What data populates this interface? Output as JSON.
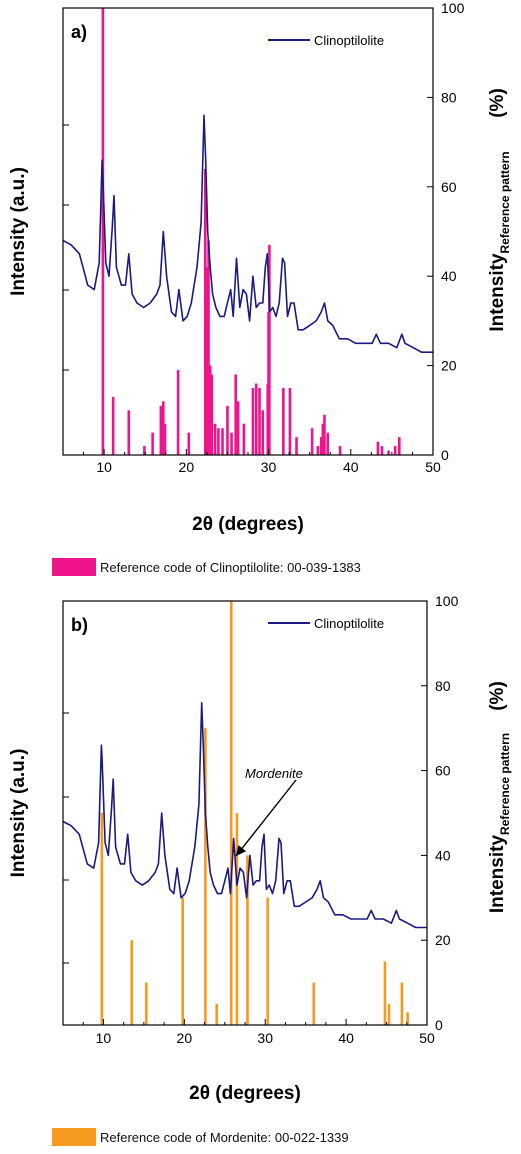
{
  "chart_data": [
    {
      "type": "line",
      "panel_label": "a)",
      "xlabel": "2θ (degrees)",
      "ylabel_left": "Intensity (a.u.)",
      "ylabel_right": "Intensity",
      "ylabel_right_sub": "Reference pattern",
      "ylabel_right_unit": "(%)",
      "xlim": [
        5,
        50
      ],
      "ylim_right": [
        0,
        100
      ],
      "x_ticks": [
        "10",
        "20",
        "30",
        "40",
        "50"
      ],
      "y_right_ticks": [
        "0",
        "20",
        "40",
        "60",
        "80",
        "100"
      ],
      "legend": "top-right",
      "series": [
        {
          "name": "Clinoptilolite",
          "color": "#1a1a80",
          "x": [
            5,
            6,
            7,
            8,
            8.8,
            9.4,
            9.75,
            9.85,
            10.2,
            10.6,
            11.0,
            11.2,
            11.5,
            12.1,
            12.6,
            13.0,
            13.4,
            14,
            14.8,
            15.6,
            16.4,
            16.8,
            17.2,
            17.6,
            18.2,
            18.7,
            19.1,
            19.6,
            20.1,
            20.6,
            21.3,
            21.8,
            22.15,
            22.35,
            22.6,
            22.9,
            23.2,
            23.6,
            24.1,
            24.6,
            25,
            25.4,
            25.7,
            26.1,
            26.5,
            26.9,
            27.3,
            27.7,
            28.1,
            28.5,
            28.9,
            29.3,
            29.6,
            29.85,
            30.15,
            30.5,
            30.9,
            31.3,
            31.7,
            31.95,
            32.3,
            32.7,
            33.1,
            33.6,
            34.2,
            35,
            35.8,
            36.4,
            36.8,
            37.2,
            37.8,
            38.6,
            39.6,
            40.6,
            41.6,
            42.6,
            43.1,
            43.6,
            44.6,
            45.6,
            46.2,
            46.6,
            47.6,
            48.6,
            49.3,
            50
          ],
          "y": [
            48,
            47,
            45,
            38,
            37,
            43,
            66,
            62,
            43,
            40,
            51,
            58,
            42,
            38,
            38,
            45,
            36,
            34,
            33,
            34,
            36,
            38,
            50,
            40,
            32,
            31,
            37,
            30,
            31,
            34,
            42,
            52,
            76,
            66,
            50,
            42,
            36,
            33,
            31,
            31,
            34,
            37,
            31,
            44,
            33,
            37,
            36,
            30,
            40,
            33,
            34,
            34,
            42,
            45,
            32,
            33,
            31,
            34,
            44,
            43,
            31,
            34,
            34,
            28,
            28,
            29,
            30,
            32,
            34,
            30,
            29,
            26,
            26,
            25,
            25,
            25,
            27,
            25,
            25,
            24,
            27,
            25,
            24,
            23,
            23,
            23
          ]
        }
      ],
      "reference": {
        "name": "Reference code of Clinoptilolite: 00-039-1383",
        "color": "#f0148c",
        "x": [
          9.85,
          11.1,
          13.0,
          14.9,
          15.9,
          16.9,
          17.2,
          17.4,
          19.0,
          20.3,
          22.3,
          22.5,
          22.6,
          22.7,
          22.9,
          23.1,
          23.5,
          23.9,
          24.4,
          25.0,
          25.5,
          26.0,
          26.3,
          27.0,
          28.1,
          28.5,
          28.9,
          29.3,
          29.9,
          30.0,
          30.1,
          31.8,
          32.6,
          33.4,
          35.3,
          36.0,
          36.4,
          36.6,
          36.8,
          37.2,
          38.7,
          43.3,
          43.8,
          44.6,
          45.4,
          45.9
        ],
        "values": [
          100,
          13,
          10,
          2,
          5,
          11,
          12,
          7,
          19,
          5,
          64,
          42,
          32,
          48,
          20,
          18,
          7,
          6,
          6,
          11,
          5,
          18,
          12,
          7,
          15,
          16,
          15,
          10,
          16,
          32,
          47,
          15,
          15,
          4,
          6,
          2,
          4,
          7,
          9,
          5,
          2,
          3,
          2,
          1,
          2,
          4
        ]
      }
    },
    {
      "type": "line",
      "panel_label": "b)",
      "xlabel": "2θ (degrees)",
      "ylabel_left": "Intensity (a.u.)",
      "ylabel_right": "Intensity",
      "ylabel_right_sub": "Reference pattern",
      "ylabel_right_unit": "(%)",
      "xlim": [
        5,
        50
      ],
      "ylim_right": [
        0,
        100
      ],
      "x_ticks": [
        "10",
        "20",
        "30",
        "40",
        "50"
      ],
      "y_right_ticks": [
        "0",
        "20",
        "40",
        "60",
        "80",
        "100"
      ],
      "legend": "top-right",
      "annotation": "Mordenite",
      "series": [
        {
          "name": "Clinoptilolite",
          "color": "#1a1a80",
          "x": [
            5,
            6,
            7,
            8,
            8.8,
            9.4,
            9.75,
            9.85,
            10.2,
            10.6,
            11.0,
            11.2,
            11.5,
            12.1,
            12.6,
            13.0,
            13.4,
            14,
            14.8,
            15.6,
            16.4,
            16.8,
            17.2,
            17.6,
            18.2,
            18.7,
            19.1,
            19.6,
            20.1,
            20.6,
            21.3,
            21.8,
            22.15,
            22.35,
            22.6,
            22.9,
            23.2,
            23.6,
            24.1,
            24.6,
            25,
            25.4,
            25.7,
            26.1,
            26.5,
            26.9,
            27.3,
            27.7,
            28.1,
            28.5,
            28.9,
            29.3,
            29.6,
            29.85,
            30.15,
            30.5,
            30.9,
            31.3,
            31.7,
            31.95,
            32.3,
            32.7,
            33.1,
            33.6,
            34.2,
            35,
            35.8,
            36.4,
            36.8,
            37.2,
            37.8,
            38.6,
            39.6,
            40.6,
            41.6,
            42.6,
            43.1,
            43.6,
            44.6,
            45.6,
            46.2,
            46.6,
            47.6,
            48.6,
            49.3,
            50
          ],
          "y": [
            48,
            47,
            45,
            38,
            37,
            43,
            66,
            62,
            43,
            40,
            51,
            58,
            42,
            38,
            38,
            45,
            36,
            34,
            33,
            34,
            36,
            38,
            50,
            40,
            32,
            31,
            37,
            30,
            31,
            34,
            42,
            52,
            76,
            66,
            50,
            42,
            36,
            33,
            31,
            31,
            34,
            37,
            31,
            44,
            33,
            37,
            36,
            30,
            40,
            33,
            34,
            34,
            42,
            45,
            32,
            33,
            31,
            34,
            44,
            43,
            31,
            34,
            34,
            28,
            28,
            29,
            30,
            32,
            34,
            30,
            29,
            26,
            26,
            25,
            25,
            25,
            27,
            25,
            25,
            24,
            27,
            25,
            24,
            23,
            23,
            23
          ]
        }
      ],
      "reference": {
        "name": "Reference code of Mordenite: 00-022-1339",
        "color": "#f59a1e",
        "x": [
          9.8,
          13.5,
          15.3,
          19.8,
          22.6,
          24.0,
          25.8,
          26.5,
          27.8,
          30.3,
          36.0,
          44.8,
          45.3,
          46.9,
          47.6
        ],
        "values": [
          50,
          20,
          10,
          30,
          70,
          5,
          100,
          50,
          40,
          30,
          10,
          15,
          5,
          10,
          3
        ]
      }
    }
  ]
}
